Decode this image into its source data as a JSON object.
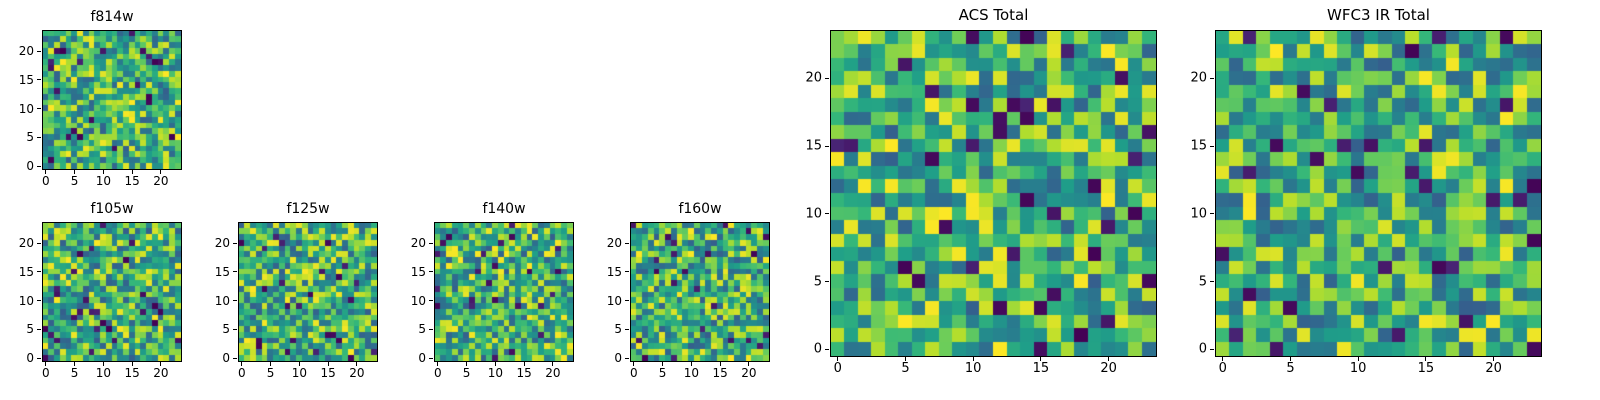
{
  "figure": {
    "background_color": "#ffffff",
    "description": "Grid of seven viridis-colormap noise image cutouts from HST filters",
    "colormap": "viridis",
    "colormap_anchor_colors": [
      "#440154",
      "#3b528b",
      "#21918c",
      "#5ec962",
      "#fde725"
    ]
  },
  "chart_data": [
    {
      "id": "f814w",
      "type": "heatmap",
      "title": "f814w",
      "grid_shape": [
        24,
        24
      ],
      "xlim": [
        -0.5,
        23.5
      ],
      "ylim": [
        -0.5,
        23.5
      ],
      "x_ticks": [
        0,
        5,
        10,
        15,
        20
      ],
      "y_ticks": [
        0,
        5,
        10,
        15,
        20
      ],
      "colormap": "viridis",
      "values_note": "unlabeled random pixel noise; mostly green/yellow with sparse dark-purple outliers"
    },
    {
      "id": "f105w",
      "type": "heatmap",
      "title": "f105w",
      "grid_shape": [
        24,
        24
      ],
      "xlim": [
        -0.5,
        23.5
      ],
      "ylim": [
        -0.5,
        23.5
      ],
      "x_ticks": [
        0,
        5,
        10,
        15,
        20
      ],
      "y_ticks": [
        0,
        5,
        10,
        15,
        20
      ],
      "colormap": "viridis",
      "values_note": "unlabeled random pixel noise; mostly green/yellow with sparse dark-purple outliers"
    },
    {
      "id": "f125w",
      "type": "heatmap",
      "title": "f125w",
      "grid_shape": [
        24,
        24
      ],
      "xlim": [
        -0.5,
        23.5
      ],
      "ylim": [
        -0.5,
        23.5
      ],
      "x_ticks": [
        0,
        5,
        10,
        15,
        20
      ],
      "y_ticks": [
        0,
        5,
        10,
        15,
        20
      ],
      "colormap": "viridis",
      "values_note": "unlabeled random pixel noise; mostly green/yellow with sparse dark-purple outliers"
    },
    {
      "id": "f140w",
      "type": "heatmap",
      "title": "f140w",
      "grid_shape": [
        24,
        24
      ],
      "xlim": [
        -0.5,
        23.5
      ],
      "ylim": [
        -0.5,
        23.5
      ],
      "x_ticks": [
        0,
        5,
        10,
        15,
        20
      ],
      "y_ticks": [
        0,
        5,
        10,
        15,
        20
      ],
      "colormap": "viridis",
      "values_note": "unlabeled random pixel noise; mostly green/yellow with sparse dark-purple outliers"
    },
    {
      "id": "f160w",
      "type": "heatmap",
      "title": "f160w",
      "grid_shape": [
        24,
        24
      ],
      "xlim": [
        -0.5,
        23.5
      ],
      "ylim": [
        -0.5,
        23.5
      ],
      "x_ticks": [
        0,
        5,
        10,
        15,
        20
      ],
      "y_ticks": [
        0,
        5,
        10,
        15,
        20
      ],
      "colormap": "viridis",
      "values_note": "unlabeled random pixel noise; mostly green/yellow with sparse dark-purple outliers"
    },
    {
      "id": "acs-total",
      "type": "heatmap",
      "title": "ACS Total",
      "grid_shape": [
        24,
        24
      ],
      "xlim": [
        -0.5,
        23.5
      ],
      "ylim": [
        -0.5,
        23.5
      ],
      "x_ticks": [
        0,
        5,
        10,
        15,
        20
      ],
      "y_ticks": [
        0,
        5,
        10,
        15,
        20
      ],
      "colormap": "viridis",
      "values_note": "unlabeled random pixel noise; mostly green/yellow with sparse dark-purple outliers"
    },
    {
      "id": "wfc3-ir-total",
      "type": "heatmap",
      "title": "WFC3 IR Total",
      "grid_shape": [
        24,
        24
      ],
      "xlim": [
        -0.5,
        23.5
      ],
      "ylim": [
        -0.5,
        23.5
      ],
      "x_ticks": [
        0,
        5,
        10,
        15,
        20
      ],
      "y_ticks": [
        0,
        5,
        10,
        15,
        20
      ],
      "colormap": "viridis",
      "values_note": "unlabeled random pixel noise; mostly green/yellow with sparse dark-purple outliers"
    }
  ]
}
